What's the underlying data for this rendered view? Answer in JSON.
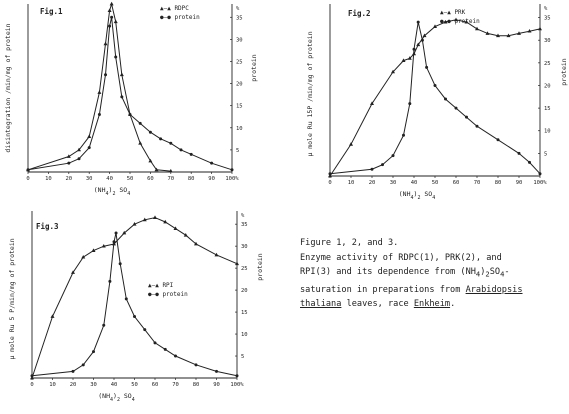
{
  "chart_data": [
    {
      "type": "line",
      "figure_label": "Fig.1",
      "xlabel": "(NH4)2 SO4",
      "ylabel_left": "disintegration /min/mg of protein",
      "ylabel_right": "protein",
      "right_unit": "%",
      "x_ticks": [
        "0",
        "10",
        "20",
        "30",
        "40",
        "50",
        "60",
        "70",
        "80",
        "90",
        "100%"
      ],
      "right_ticks": [
        "5",
        "10",
        "15",
        "20",
        "25",
        "30",
        "35"
      ],
      "right_ylim": [
        0,
        38
      ],
      "xlim": [
        0,
        100
      ],
      "series": [
        {
          "name": "RDPC",
          "legend_symbol": "▲—▲",
          "marker": "triangle",
          "points": [
            [
              0,
              0.5
            ],
            [
              20,
              3.5
            ],
            [
              25,
              5
            ],
            [
              30,
              8
            ],
            [
              35,
              18
            ],
            [
              38,
              29
            ],
            [
              40,
              36.5
            ],
            [
              41,
              38
            ],
            [
              43,
              34
            ],
            [
              46,
              22
            ],
            [
              50,
              13
            ],
            [
              55,
              6.5
            ],
            [
              60,
              2.5
            ],
            [
              63,
              0.5
            ],
            [
              70,
              0.2
            ]
          ]
        },
        {
          "name": "protein",
          "legend_symbol": "●—●",
          "marker": "circle",
          "points": [
            [
              0,
              0.5
            ],
            [
              20,
              2
            ],
            [
              25,
              3
            ],
            [
              30,
              5.5
            ],
            [
              35,
              13
            ],
            [
              38,
              22
            ],
            [
              40,
              33
            ],
            [
              41,
              35
            ],
            [
              43,
              26
            ],
            [
              46,
              17
            ],
            [
              50,
              13
            ],
            [
              55,
              11
            ],
            [
              60,
              9
            ],
            [
              65,
              7.5
            ],
            [
              70,
              6.5
            ],
            [
              75,
              5
            ],
            [
              80,
              4
            ],
            [
              90,
              2
            ],
            [
              100,
              0.5
            ]
          ]
        }
      ]
    },
    {
      "type": "line",
      "figure_label": "Fig.2",
      "xlabel": "(NH4)2 SO4",
      "ylabel_left": "μ mole Ru 15P /min/mg of protein",
      "ylabel_right": "protein",
      "right_unit": "%",
      "x_ticks": [
        "0",
        "10",
        "20",
        "30",
        "40",
        "50",
        "60",
        "70",
        "80",
        "90",
        "100%"
      ],
      "right_ticks": [
        "5",
        "10",
        "15",
        "20",
        "25",
        "30",
        "35"
      ],
      "right_ylim": [
        0,
        38
      ],
      "xlim": [
        0,
        100
      ],
      "series": [
        {
          "name": "PRK",
          "legend_symbol": "▲—▲",
          "marker": "triangle",
          "points": [
            [
              0,
              0
            ],
            [
              10,
              7
            ],
            [
              20,
              16
            ],
            [
              30,
              23
            ],
            [
              35,
              25.5
            ],
            [
              38,
              26
            ],
            [
              40,
              27
            ],
            [
              42,
              29
            ],
            [
              45,
              31
            ],
            [
              50,
              33
            ],
            [
              55,
              34
            ],
            [
              60,
              34.5
            ],
            [
              65,
              34
            ],
            [
              70,
              32.5
            ],
            [
              75,
              31.5
            ],
            [
              80,
              31
            ],
            [
              85,
              31
            ],
            [
              90,
              31.5
            ],
            [
              95,
              32
            ],
            [
              100,
              32.5
            ]
          ]
        },
        {
          "name": "protein",
          "legend_symbol": "●—●",
          "marker": "circle",
          "points": [
            [
              0,
              0.5
            ],
            [
              20,
              1.5
            ],
            [
              25,
              2.5
            ],
            [
              30,
              4.5
            ],
            [
              35,
              9
            ],
            [
              38,
              16
            ],
            [
              40,
              28
            ],
            [
              42,
              34
            ],
            [
              44,
              30
            ],
            [
              46,
              24
            ],
            [
              50,
              20
            ],
            [
              55,
              17
            ],
            [
              60,
              15
            ],
            [
              65,
              13
            ],
            [
              70,
              11
            ],
            [
              80,
              8
            ],
            [
              90,
              5
            ],
            [
              95,
              3
            ],
            [
              100,
              0.5
            ]
          ]
        }
      ]
    },
    {
      "type": "line",
      "figure_label": "Fig.3",
      "xlabel": "(NH4)2 SO4",
      "ylabel_left": "μ mole Ru 5 P/min/mg of protein",
      "ylabel_right": "protein",
      "right_unit": "%",
      "x_ticks": [
        "0",
        "10",
        "20",
        "30",
        "40",
        "50",
        "60",
        "70",
        "80",
        "90",
        "100%"
      ],
      "right_ticks": [
        "5",
        "10",
        "15",
        "20",
        "25",
        "30",
        "35"
      ],
      "right_ylim": [
        0,
        38
      ],
      "xlim": [
        0,
        100
      ],
      "series": [
        {
          "name": "RPI",
          "legend_symbol": "▲—▲",
          "marker": "triangle",
          "points": [
            [
              0,
              0
            ],
            [
              10,
              14
            ],
            [
              20,
              24
            ],
            [
              25,
              27.5
            ],
            [
              30,
              29
            ],
            [
              35,
              30
            ],
            [
              40,
              30.5
            ],
            [
              45,
              33
            ],
            [
              50,
              35
            ],
            [
              55,
              36
            ],
            [
              60,
              36.5
            ],
            [
              65,
              35.5
            ],
            [
              70,
              34
            ],
            [
              75,
              32.5
            ],
            [
              80,
              30.5
            ],
            [
              90,
              28
            ],
            [
              100,
              26
            ]
          ]
        },
        {
          "name": "protein",
          "legend_symbol": "●—●",
          "marker": "circle",
          "points": [
            [
              0,
              0.5
            ],
            [
              20,
              1.5
            ],
            [
              25,
              3
            ],
            [
              30,
              6
            ],
            [
              35,
              12
            ],
            [
              38,
              22
            ],
            [
              40,
              31
            ],
            [
              41,
              33
            ],
            [
              43,
              26
            ],
            [
              46,
              18
            ],
            [
              50,
              14
            ],
            [
              55,
              11
            ],
            [
              60,
              8
            ],
            [
              65,
              6.5
            ],
            [
              70,
              5
            ],
            [
              80,
              3
            ],
            [
              90,
              1.5
            ],
            [
              100,
              0.5
            ]
          ]
        }
      ]
    }
  ],
  "caption": {
    "line1": "Figure 1, 2, and 3.",
    "line2": "Enzyme activity of RDPC(1), PRK(2), and",
    "line3_a": "RPI(3) and its dependence from (NH",
    "line3_sub1": "4",
    "line3_b": ")",
    "line3_sub2": "2",
    "line3_c": "SO",
    "line3_sub3": "4",
    "line3_d": "-",
    "line4_a": "saturation in preparations from ",
    "line4_u": "Arabidopsis",
    "line5_u": "thaliana",
    "line5_b": " leaves, race ",
    "line5_u2": "Enkheim",
    "line5_c": "."
  }
}
